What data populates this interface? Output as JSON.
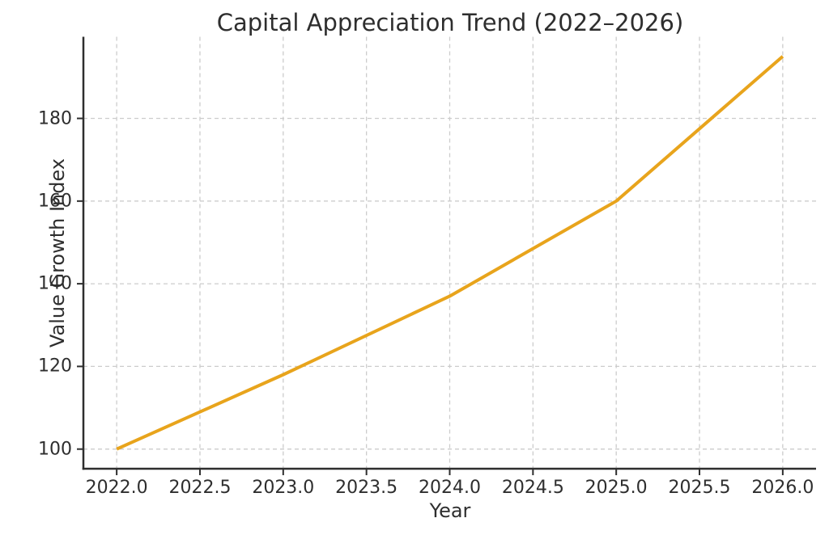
{
  "figure": {
    "background": "#ffffff"
  },
  "chart_data": {
    "type": "line",
    "title": "Capital Appreciation Trend (2022–2026)",
    "xlabel": "Year",
    "ylabel": "Value Growth Index",
    "x": [
      2022,
      2023,
      2024,
      2025,
      2026
    ],
    "values": [
      100,
      118,
      137,
      160,
      195
    ],
    "series": [
      {
        "name": "Value Growth Index",
        "x": [
          2022,
          2023,
          2024,
          2025,
          2026
        ],
        "y": [
          100,
          118,
          137,
          160,
          195
        ]
      }
    ],
    "xlim": [
      2021.8,
      2026.2
    ],
    "ylim": [
      95.25,
      199.75
    ],
    "xticks": {
      "values": [
        2022.0,
        2022.5,
        2023.0,
        2023.5,
        2024.0,
        2024.5,
        2025.0,
        2025.5,
        2026.0
      ],
      "labels": [
        "2022.0",
        "2022.5",
        "2023.0",
        "2023.5",
        "2024.0",
        "2024.5",
        "2025.0",
        "2025.5",
        "2026.0"
      ]
    },
    "yticks": {
      "values": [
        100,
        120,
        140,
        160,
        180
      ],
      "labels": [
        "100",
        "120",
        "140",
        "160",
        "180"
      ]
    },
    "grid": true,
    "grid_style": "dashed",
    "legend": "none",
    "colors": {
      "line": "#E8A41C",
      "grid": "#cccccc",
      "spine": "#2e2e2e",
      "tick": "#2e2e2e",
      "text": "#2e2e2e",
      "background": "#ffffff"
    },
    "line_width": 4
  }
}
